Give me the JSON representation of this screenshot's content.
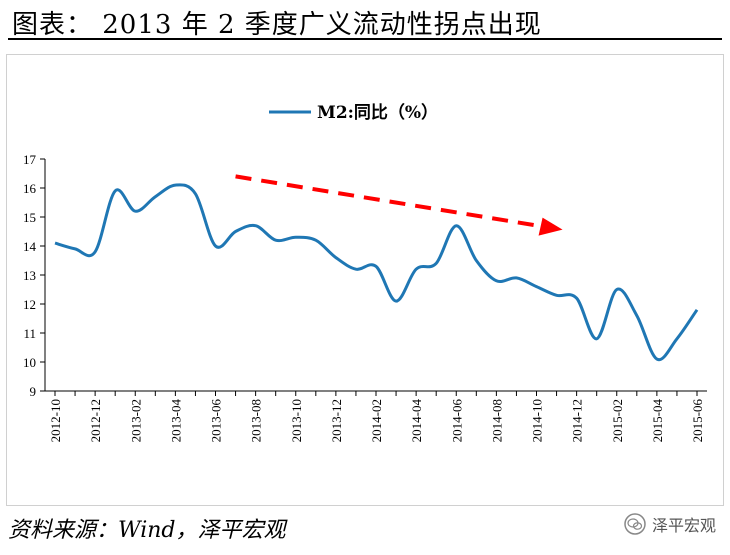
{
  "title": "图表： 2013 年 2 季度广义流动性拐点出现",
  "source": "资料来源：Wind，泽平宏观",
  "watermark": "泽平宏观",
  "colors": {
    "series": "#1f77b4",
    "trend_arrow": "#ff0000"
  },
  "chart_data": {
    "type": "line",
    "series": [
      {
        "name": "M2:同比（%）",
        "x": [
          "2012-10",
          "2012-11",
          "2012-12",
          "2013-01",
          "2013-02",
          "2013-03",
          "2013-04",
          "2013-05",
          "2013-06",
          "2013-07",
          "2013-08",
          "2013-09",
          "2013-10",
          "2013-11",
          "2013-12",
          "2014-01",
          "2014-02",
          "2014-03",
          "2014-04",
          "2014-05",
          "2014-06",
          "2014-07",
          "2014-08",
          "2014-09",
          "2014-10",
          "2014-11",
          "2014-12",
          "2015-01",
          "2015-02",
          "2015-03",
          "2015-04",
          "2015-05",
          "2015-06"
        ],
        "values": [
          14.1,
          13.9,
          13.8,
          15.9,
          15.2,
          15.7,
          16.1,
          15.8,
          14.0,
          14.5,
          14.7,
          14.2,
          14.3,
          14.2,
          13.6,
          13.2,
          13.3,
          12.1,
          13.2,
          13.4,
          14.7,
          13.5,
          12.8,
          12.9,
          12.6,
          12.3,
          12.2,
          10.8,
          12.5,
          11.6,
          10.1,
          10.8,
          11.8
        ]
      }
    ],
    "xticks": [
      "2012-10",
      "2012-12",
      "2013-02",
      "2013-04",
      "2013-06",
      "2013-08",
      "2013-10",
      "2013-12",
      "2014-02",
      "2014-04",
      "2014-06",
      "2014-08",
      "2014-10",
      "2014-12",
      "2015-02",
      "2015-04",
      "2015-06"
    ],
    "ylim": [
      9,
      17
    ],
    "yticks": [
      9,
      10,
      11,
      12,
      13,
      14,
      15,
      16,
      17
    ],
    "grid": false,
    "legend_position": "top-center",
    "annotations": [
      {
        "type": "arrow",
        "style": "dashed",
        "color": "#ff0000",
        "from_x": "2013-07",
        "from_y": 16.4,
        "to_x": "2014-11",
        "to_y": 14.6
      }
    ]
  }
}
